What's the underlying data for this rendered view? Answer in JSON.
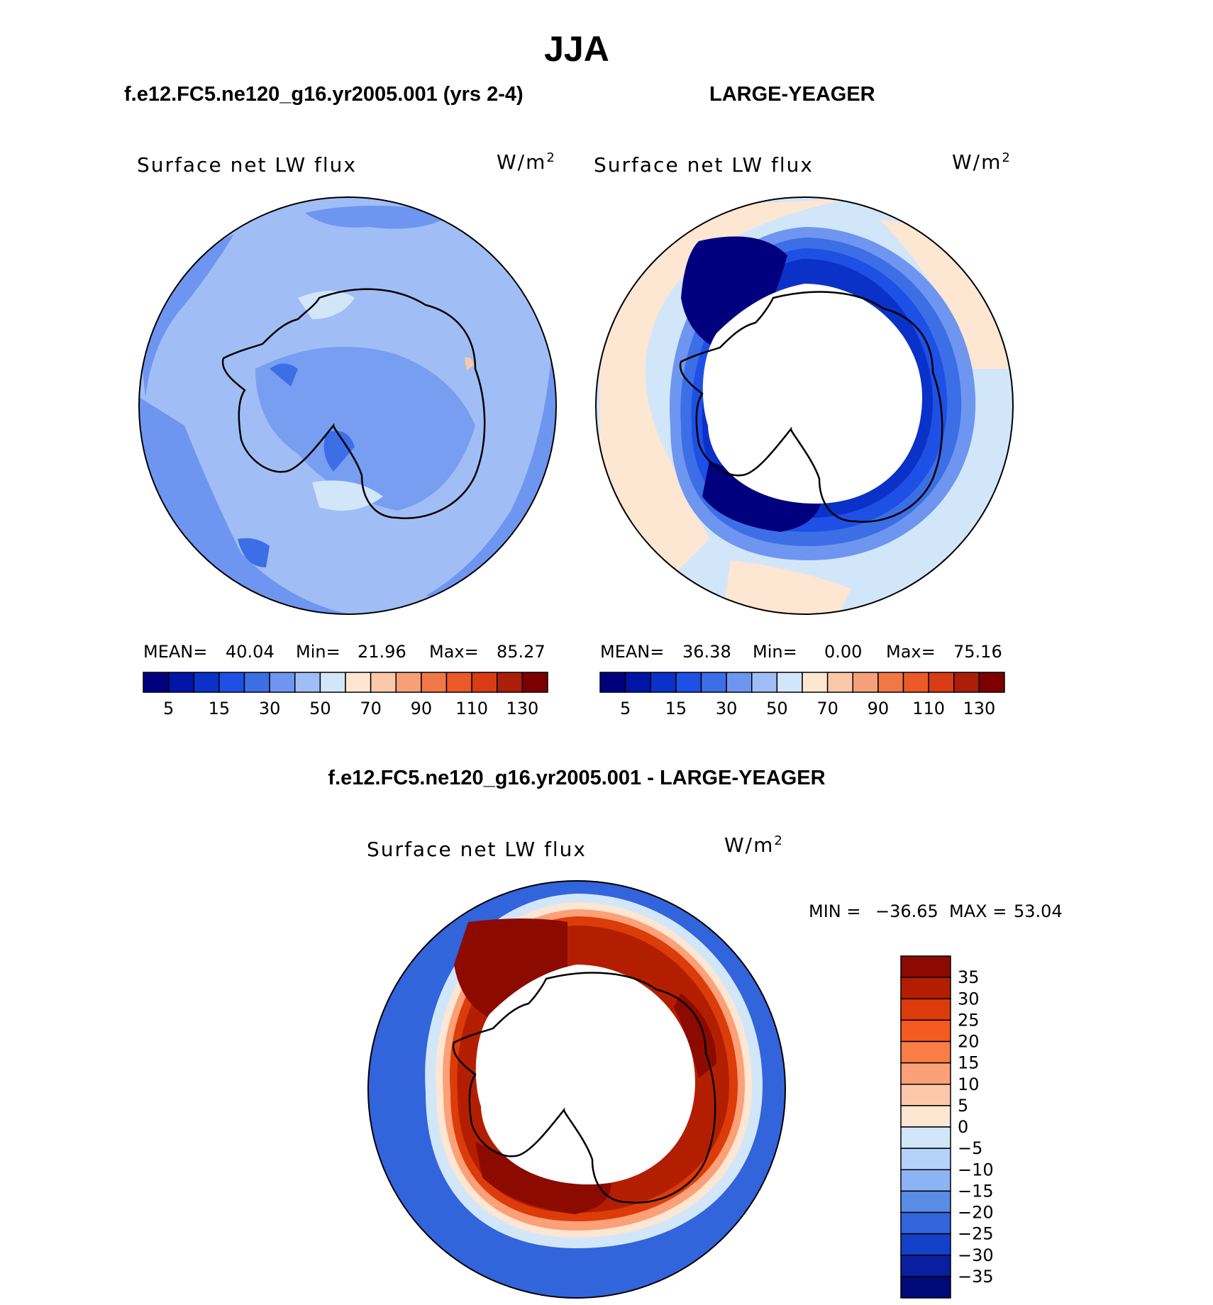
{
  "title": "JJA",
  "chart_data": [
    {
      "type": "heatmap",
      "panel": "model",
      "case_title": "f.e12.FC5.ne120_g16.yr2005.001 (yrs 2-4)",
      "variable_label": "Surface net LW flux",
      "units_base": "W/m",
      "units_exp": "2",
      "projection": "south polar stereographic",
      "stats": {
        "mean_label": "MEAN=",
        "mean": "40.04",
        "min_label": "Min=",
        "min": "21.96",
        "max_label": "Max=",
        "max": "85.27"
      },
      "levels": [
        "5",
        "15",
        "30",
        "50",
        "70",
        "90",
        "110",
        "130"
      ],
      "colors": [
        "#00007f",
        "#0014a6",
        "#0a32c8",
        "#1e50e6",
        "#3c6ee6",
        "#6e96f0",
        "#a0bef5",
        "#d2e6fa",
        "#fde6d2",
        "#fbc8aa",
        "#f5a078",
        "#f07846",
        "#eb5a28",
        "#d73c14",
        "#aa1e0a",
        "#7d0000"
      ]
    },
    {
      "type": "heatmap",
      "panel": "obs",
      "case_title": "LARGE-YEAGER",
      "variable_label": "Surface net LW flux",
      "units_base": "W/m",
      "units_exp": "2",
      "projection": "south polar stereographic",
      "stats": {
        "mean_label": "MEAN=",
        "mean": "36.38",
        "min_label": "Min=",
        "min": "0.00",
        "max_label": "Max=",
        "max": "75.16"
      },
      "levels": [
        "5",
        "15",
        "30",
        "50",
        "70",
        "90",
        "110",
        "130"
      ],
      "colors": [
        "#00007f",
        "#0014a6",
        "#0a32c8",
        "#1e50e6",
        "#3c6ee6",
        "#6e96f0",
        "#a0bef5",
        "#d2e6fa",
        "#fde6d2",
        "#fbc8aa",
        "#f5a078",
        "#f07846",
        "#eb5a28",
        "#d73c14",
        "#aa1e0a",
        "#7d0000"
      ]
    },
    {
      "type": "heatmap",
      "panel": "difference",
      "case_title": "f.e12.FC5.ne120_g16.yr2005.001 - LARGE-YEAGER",
      "variable_label": "Surface net LW flux",
      "units_base": "W/m",
      "units_exp": "2",
      "projection": "south polar stereographic",
      "stats": {
        "min_label": "MIN =",
        "min": "−36.65",
        "max_label": "MAX =",
        "max": "53.04"
      },
      "levels": [
        "35",
        "30",
        "25",
        "20",
        "15",
        "10",
        "5",
        "0",
        "−5",
        "−10",
        "−15",
        "−20",
        "−25",
        "−30",
        "−35"
      ],
      "colors": [
        "#8c0a00",
        "#b41e00",
        "#dc3c0a",
        "#f55a1e",
        "#fa7d46",
        "#fba078",
        "#fdc8aa",
        "#fde6d2",
        "#d2e6fa",
        "#b4d2fa",
        "#8cb4f5",
        "#5a8ce6",
        "#3264dc",
        "#1440c8",
        "#0a1ea0",
        "#000a78"
      ]
    }
  ]
}
